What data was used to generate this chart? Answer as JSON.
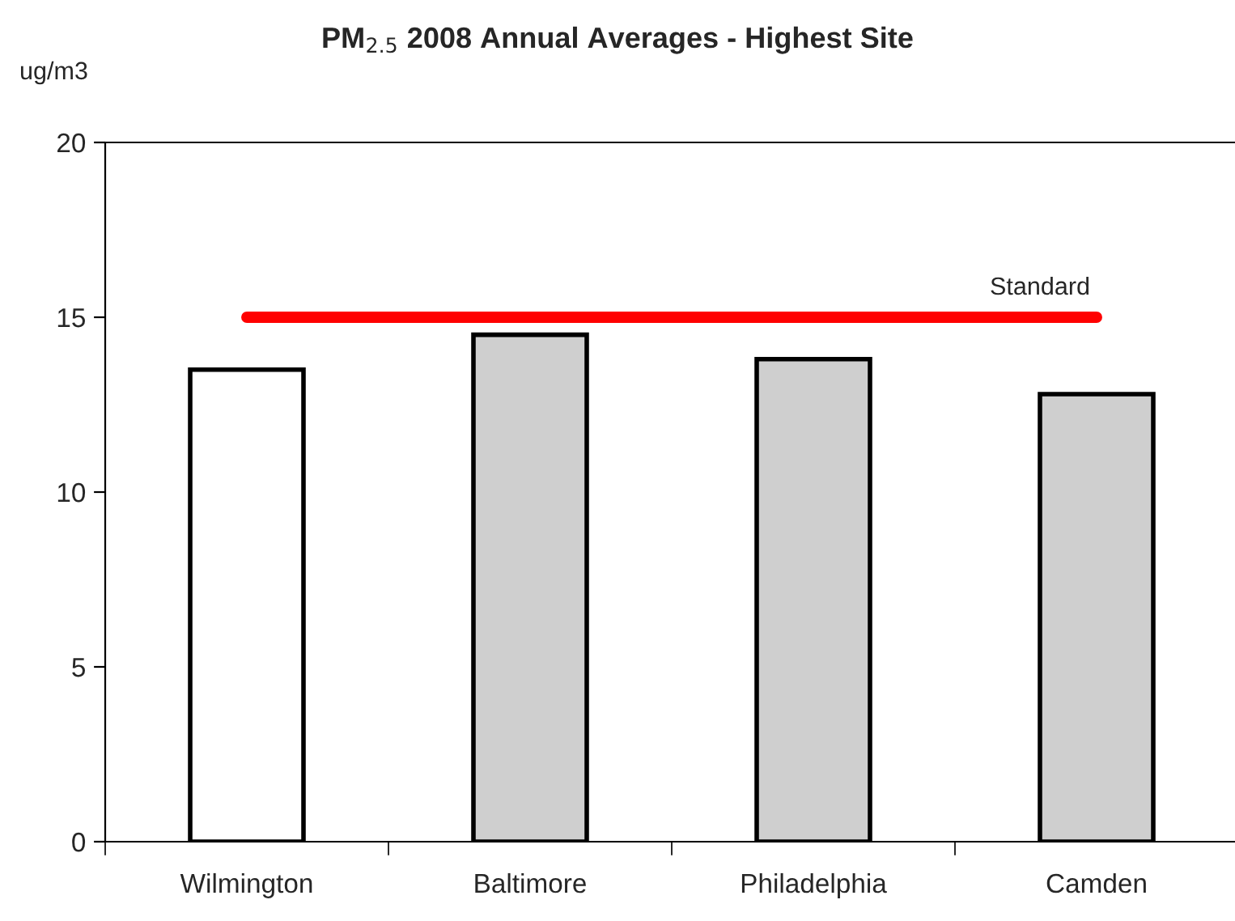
{
  "chart_data": {
    "type": "bar",
    "title": "PM$_{2.5}$ 2008 Annual Averages - Highest Site",
    "ylabel": "ug/m3",
    "categories": [
      "Wilmington",
      "Baltimore",
      "Philadelphia",
      "Camden"
    ],
    "values": [
      13.5,
      14.5,
      13.8,
      12.8
    ],
    "colors": [
      "#ffffff",
      "#cfcfcf",
      "#cfcfcf",
      "#cfcfcf"
    ],
    "ylim": [
      0,
      20
    ],
    "yticks": [
      0,
      5,
      10,
      15,
      20
    ],
    "grid": false,
    "legend": false,
    "ref_lines": [
      {
        "axis": "y",
        "value": 15,
        "label": "Standard",
        "color": "#ff0000",
        "line_style": "solid"
      }
    ]
  }
}
